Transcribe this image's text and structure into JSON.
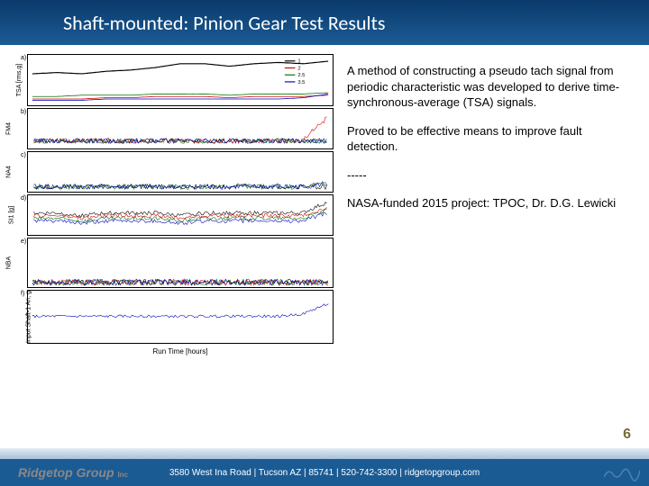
{
  "header": {
    "title": "Shaft-mounted: Pinion Gear Test Results"
  },
  "charts": {
    "xlabel": "Run Time [hours]",
    "xlim": [
      0,
      120
    ],
    "xticks": [
      0,
      20,
      40,
      60,
      80,
      100,
      120
    ],
    "panels": [
      {
        "letter": "a)",
        "ylabel": "TSA [rms,g]",
        "h": 58,
        "ylim": [
          0,
          4
        ],
        "yticks": [
          0,
          1,
          2,
          3,
          4
        ],
        "series": [
          {
            "color": "#000000",
            "width": 1.2,
            "y": [
              2.5,
              2.6,
              2.5,
              2.7,
              2.8,
              3.0,
              3.3,
              3.3,
              3.1,
              3.3,
              3.4,
              3.3,
              3.5
            ]
          },
          {
            "color": "#d00000",
            "width": 0.8,
            "y": [
              0.5,
              0.5,
              0.5,
              0.6,
              0.6,
              0.7,
              0.7,
              0.7,
              0.6,
              0.7,
              0.7,
              0.7,
              0.8
            ]
          },
          {
            "color": "#007000",
            "width": 0.8,
            "y": [
              0.7,
              0.7,
              0.8,
              0.8,
              0.8,
              0.9,
              0.9,
              0.9,
              0.8,
              0.9,
              0.9,
              0.9,
              1.0
            ]
          },
          {
            "color": "#0000c0",
            "width": 0.8,
            "y": [
              0.4,
              0.4,
              0.4,
              0.5,
              0.5,
              0.5,
              0.5,
              0.5,
              0.5,
              0.5,
              0.5,
              0.6,
              0.9
            ]
          }
        ],
        "legend": [
          "1",
          "2",
          "2.5",
          "3.5"
        ],
        "legend_colors": [
          "#000000",
          "#d00000",
          "#007000",
          "#0000c0"
        ]
      },
      {
        "letter": "b)",
        "ylabel": "FM4",
        "h": 46,
        "ylim": [
          0,
          12
        ],
        "yticks": [
          0,
          3,
          6,
          9,
          12
        ],
        "series": [
          {
            "color": "#000000",
            "width": 0.6,
            "y": [
              2,
              2,
              2,
              2,
              2,
              2,
              2,
              2,
              2,
              2,
              2,
              2,
              2
            ],
            "noise": 1.5
          },
          {
            "color": "#d00000",
            "width": 0.6,
            "y": [
              2,
              2,
              2,
              2,
              2,
              2,
              2,
              2,
              2,
              2,
              2,
              2,
              9
            ],
            "noise": 1.5
          },
          {
            "color": "#007000",
            "width": 0.6,
            "y": [
              2,
              2,
              2,
              2,
              2,
              2,
              2,
              2,
              2,
              2,
              2,
              2,
              2
            ],
            "noise": 1.5
          },
          {
            "color": "#0000c0",
            "width": 0.6,
            "y": [
              2,
              2,
              2,
              2,
              2,
              2,
              2,
              2,
              2,
              2,
              2,
              2,
              2
            ],
            "noise": 1.5
          }
        ]
      },
      {
        "letter": "c)",
        "ylabel": "NA4",
        "h": 46,
        "ylim": [
          0,
          300
        ],
        "yticks": [
          0,
          100,
          200,
          300
        ],
        "series": [
          {
            "color": "#000000",
            "width": 0.6,
            "y": [
              30,
              30,
              30,
              30,
              30,
              30,
              30,
              30,
              30,
              30,
              30,
              30,
              30
            ],
            "noise": 40
          },
          {
            "color": "#007000",
            "width": 0.6,
            "y": [
              30,
              30,
              30,
              30,
              30,
              30,
              30,
              30,
              30,
              30,
              30,
              30,
              60
            ],
            "noise": 40
          },
          {
            "color": "#0000c0",
            "width": 0.6,
            "y": [
              30,
              30,
              30,
              30,
              30,
              30,
              30,
              30,
              30,
              30,
              30,
              30,
              50
            ],
            "noise": 40
          }
        ]
      },
      {
        "letter": "d)",
        "ylabel": "SI1 [g]",
        "h": 46,
        "ylim": [
          0,
          1.5
        ],
        "yticks": [
          0,
          0.5,
          1.0,
          1.5
        ],
        "series": [
          {
            "color": "#000000",
            "width": 0.6,
            "y": [
              0.8,
              0.8,
              0.7,
              0.8,
              0.8,
              0.8,
              0.7,
              0.8,
              0.8,
              0.8,
              0.8,
              0.8,
              1.2
            ],
            "noise": 0.15
          },
          {
            "color": "#d00000",
            "width": 0.6,
            "y": [
              0.7,
              0.7,
              0.6,
              0.7,
              0.7,
              0.7,
              0.6,
              0.7,
              0.7,
              0.7,
              0.7,
              0.7,
              1.0
            ],
            "noise": 0.15
          },
          {
            "color": "#007000",
            "width": 0.6,
            "y": [
              0.6,
              0.6,
              0.5,
              0.6,
              0.6,
              0.6,
              0.5,
              0.6,
              0.6,
              0.6,
              0.6,
              0.6,
              0.9
            ],
            "noise": 0.15
          },
          {
            "color": "#0000c0",
            "width": 0.6,
            "y": [
              0.5,
              0.5,
              0.4,
              0.5,
              0.5,
              0.5,
              0.4,
              0.5,
              0.5,
              0.5,
              0.5,
              0.5,
              0.8
            ],
            "noise": 0.15
          }
        ]
      },
      {
        "letter": "e)",
        "ylabel": "NBA",
        "h": 56,
        "ylim": [
          0,
          4000
        ],
        "yticks": [
          0,
          1000,
          2000,
          3000,
          4000
        ],
        "series": [
          {
            "color": "#000000",
            "width": 0.6,
            "y": [
              300,
              300,
              300,
              300,
              300,
              300,
              300,
              300,
              300,
              300,
              300,
              300,
              300
            ],
            "noise": 500
          },
          {
            "color": "#d00000",
            "width": 0.6,
            "y": [
              300,
              300,
              300,
              300,
              300,
              300,
              300,
              300,
              300,
              300,
              300,
              300,
              300
            ],
            "noise": 500
          },
          {
            "color": "#007000",
            "width": 0.6,
            "y": [
              300,
              300,
              300,
              300,
              300,
              300,
              300,
              300,
              300,
              300,
              300,
              300,
              300
            ],
            "noise": 500
          },
          {
            "color": "#0000c0",
            "width": 0.6,
            "y": [
              300,
              300,
              300,
              300,
              300,
              300,
              300,
              300,
              300,
              300,
              300,
              300,
              300
            ],
            "noise": 500
          }
        ]
      },
      {
        "letter": "f)",
        "ylabel": "Input Shaft-1 An, g",
        "h": 60,
        "ylim": [
          -0.1,
          0.1
        ],
        "yticks": [
          -0.1,
          -0.05,
          0.0,
          0.05,
          0.1
        ],
        "series": [
          {
            "color": "#0000c0",
            "width": 0.6,
            "y": [
              0,
              0,
              0,
              0,
              0,
              0,
              0,
              0,
              0,
              0,
              0,
              0.01,
              0.05
            ],
            "noise": 0.01
          }
        ]
      }
    ]
  },
  "text": {
    "p1": "A method of constructing a pseudo tach signal from periodic characteristic was developed to derive time-synchronous-average (TSA) signals.",
    "p2": "Proved to be effective means to improve fault detection.",
    "sep": "-----",
    "p3": "NASA-funded 2015 project: TPOC, Dr. D.G. Lewicki"
  },
  "page_num": "6",
  "footer": {
    "logo": "Ridgetop Group",
    "logo_sub": "Inc",
    "address": "3580 West Ina Road  |  Tucson AZ  |  85741  |  520-742-3300  |  ridgetopgroup.com"
  }
}
